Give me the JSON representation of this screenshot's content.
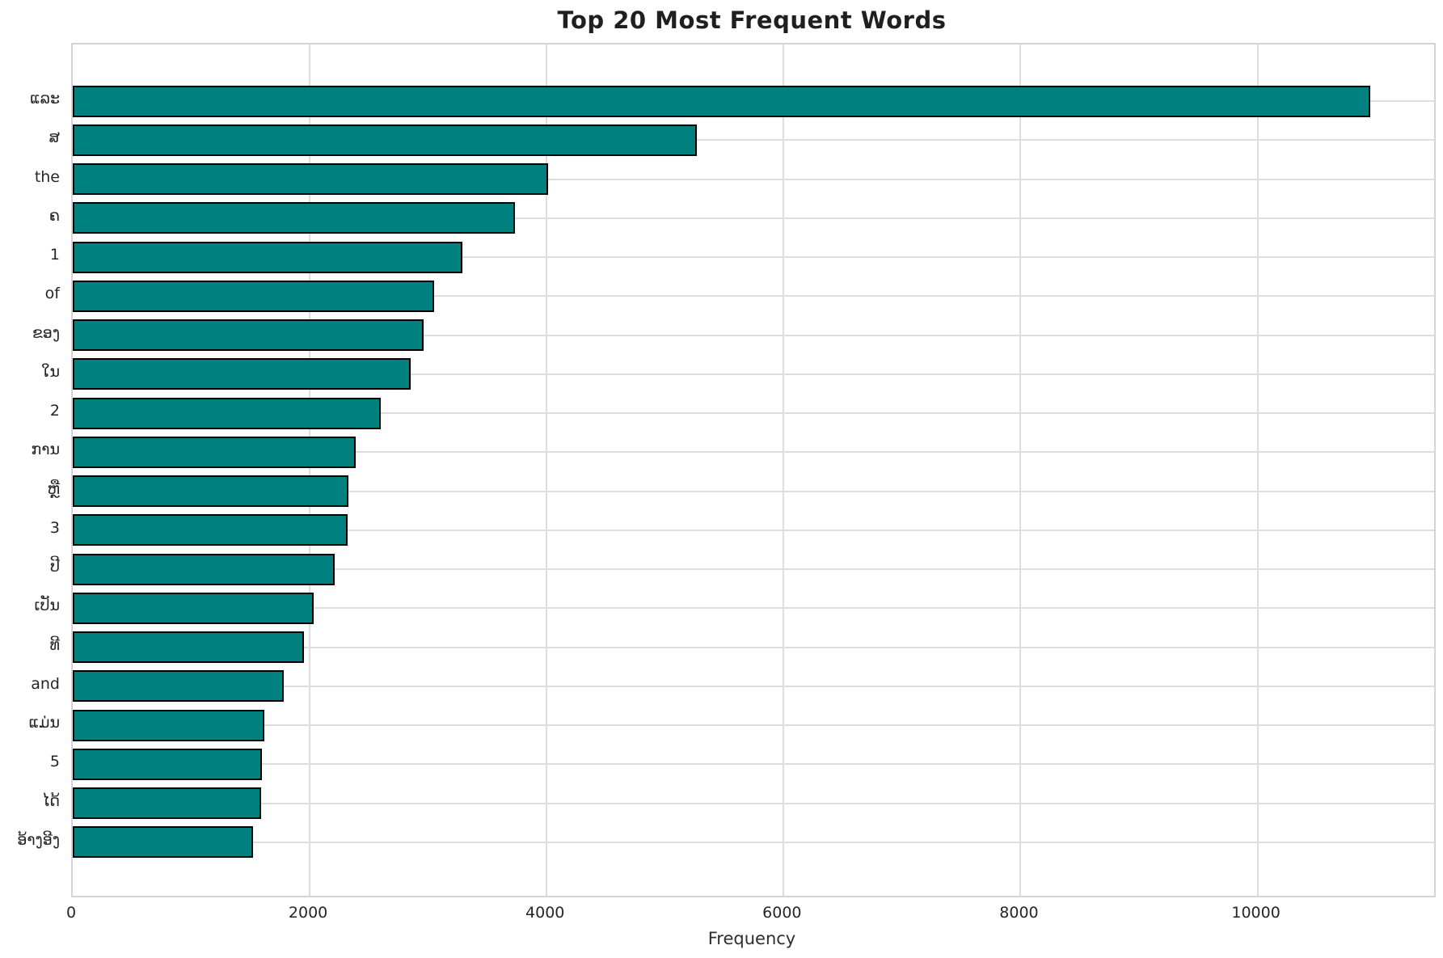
{
  "title": "Top 20 Most Frequent Words",
  "chart_data": {
    "type": "bar",
    "orientation": "horizontal",
    "title": "Top 20 Most Frequent Words",
    "xlabel": "Frequency",
    "ylabel": "",
    "categories": [
      "ແລະ",
      "ສ",
      "the",
      "ຄ",
      "1",
      "of",
      "ຂອງ",
      "ໃນ",
      "2",
      "ການ",
      "ຫຼື",
      "3",
      "ປີ",
      "ເປັນ",
      "ທີ",
      "and",
      "ແມ່ນ",
      "5",
      "ໄດ້",
      "ອ້າງອີງ"
    ],
    "values": [
      10950,
      5270,
      4010,
      3730,
      3290,
      3050,
      2960,
      2850,
      2600,
      2390,
      2330,
      2320,
      2210,
      2030,
      1950,
      1780,
      1620,
      1600,
      1590,
      1520
    ],
    "xticks": [
      0,
      2000,
      4000,
      6000,
      8000,
      10000
    ],
    "xlim": [
      0,
      11490
    ],
    "grid": true,
    "legend": false,
    "bar_color": "#00807f",
    "bar_edge_color": "#000000"
  }
}
